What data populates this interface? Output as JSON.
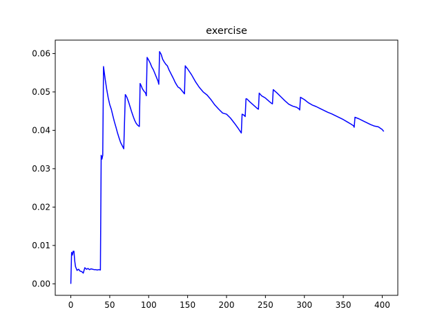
{
  "chart_data": {
    "type": "line",
    "title": "exercise",
    "xlabel": "",
    "ylabel": "",
    "xlim": [
      -20,
      420
    ],
    "ylim": [
      -0.003,
      0.0635
    ],
    "x_ticks": [
      0,
      50,
      100,
      150,
      200,
      250,
      300,
      350,
      400
    ],
    "x_tick_labels": [
      "0",
      "50",
      "100",
      "150",
      "200",
      "250",
      "300",
      "350",
      "400"
    ],
    "y_ticks": [
      0.0,
      0.01,
      0.02,
      0.03,
      0.04,
      0.05,
      0.06
    ],
    "y_tick_labels": [
      "0.00",
      "0.01",
      "0.02",
      "0.03",
      "0.04",
      "0.05",
      "0.06"
    ],
    "grid": false,
    "series": [
      {
        "color": "#0000ff",
        "x": [
          0,
          1,
          2,
          3,
          4,
          5,
          6,
          8,
          10,
          12,
          14,
          16,
          18,
          20,
          22,
          24,
          26,
          28,
          30,
          32,
          34,
          36,
          38,
          39,
          40,
          41,
          42,
          44,
          46,
          48,
          50,
          52,
          54,
          56,
          58,
          60,
          62,
          64,
          66,
          68,
          70,
          71,
          72,
          74,
          76,
          78,
          80,
          82,
          84,
          86,
          88,
          89,
          90,
          92,
          94,
          96,
          97,
          98,
          100,
          102,
          104,
          106,
          108,
          110,
          112,
          113,
          114,
          116,
          118,
          120,
          122,
          124,
          126,
          128,
          130,
          132,
          134,
          136,
          138,
          140,
          142,
          144,
          146,
          147,
          148,
          150,
          155,
          160,
          165,
          170,
          175,
          180,
          185,
          190,
          195,
          200,
          205,
          210,
          215,
          219,
          220,
          222,
          224,
          225,
          226,
          230,
          235,
          240,
          241,
          242,
          245,
          250,
          255,
          258,
          259,
          260,
          265,
          270,
          275,
          280,
          285,
          290,
          293,
          294,
          295,
          300,
          305,
          310,
          315,
          320,
          325,
          330,
          335,
          340,
          345,
          350,
          355,
          360,
          363,
          364,
          365,
          370,
          375,
          380,
          385,
          390,
          395,
          400,
          402
        ],
        "y": [
          0.0,
          0.0082,
          0.0075,
          0.0085,
          0.0085,
          0.006,
          0.0045,
          0.0035,
          0.0038,
          0.0033,
          0.0032,
          0.0028,
          0.0042,
          0.0038,
          0.004,
          0.0037,
          0.0039,
          0.0038,
          0.0037,
          0.0037,
          0.0036,
          0.0037,
          0.0036,
          0.0335,
          0.0325,
          0.0335,
          0.0566,
          0.0535,
          0.0508,
          0.0485,
          0.0467,
          0.0455,
          0.0438,
          0.0422,
          0.0408,
          0.0393,
          0.038,
          0.0368,
          0.036,
          0.0352,
          0.0493,
          0.049,
          0.0486,
          0.0475,
          0.0462,
          0.0449,
          0.0437,
          0.0426,
          0.0418,
          0.0413,
          0.041,
          0.0522,
          0.0518,
          0.0508,
          0.0502,
          0.0497,
          0.049,
          0.059,
          0.0583,
          0.0575,
          0.0565,
          0.0558,
          0.0548,
          0.0538,
          0.0528,
          0.052,
          0.0605,
          0.0598,
          0.0585,
          0.0578,
          0.0572,
          0.0568,
          0.0558,
          0.055,
          0.0542,
          0.0534,
          0.0525,
          0.0518,
          0.0512,
          0.051,
          0.0505,
          0.05,
          0.0495,
          0.0568,
          0.0565,
          0.056,
          0.0545,
          0.0527,
          0.0512,
          0.05,
          0.0492,
          0.048,
          0.0466,
          0.0455,
          0.0445,
          0.0442,
          0.0432,
          0.0419,
          0.0405,
          0.0393,
          0.0442,
          0.044,
          0.0436,
          0.0482,
          0.0482,
          0.0474,
          0.0465,
          0.0456,
          0.0455,
          0.0497,
          0.049,
          0.0484,
          0.0475,
          0.047,
          0.0469,
          0.0506,
          0.0497,
          0.0487,
          0.0477,
          0.0468,
          0.0463,
          0.046,
          0.0456,
          0.0453,
          0.0486,
          0.048,
          0.0472,
          0.0466,
          0.0462,
          0.0457,
          0.0452,
          0.0447,
          0.0443,
          0.0438,
          0.0433,
          0.0428,
          0.0422,
          0.0416,
          0.0412,
          0.0408,
          0.0434,
          0.043,
          0.0425,
          0.042,
          0.0415,
          0.0411,
          0.0409,
          0.0402,
          0.0397
        ]
      }
    ]
  }
}
